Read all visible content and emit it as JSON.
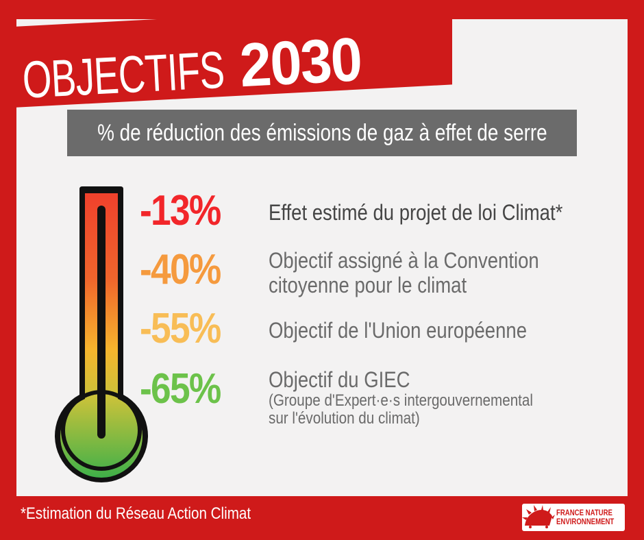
{
  "title": {
    "word": "OBJECTIFS",
    "year": "2030"
  },
  "subtitle": "% de réduction des émissions de gaz à effet de serre",
  "items": [
    {
      "percent": "-13%",
      "color": "#f2262a",
      "text": "Effet estimé du projet de loi Climat*"
    },
    {
      "percent": "-40%",
      "color": "#f59a3e",
      "text_line1": "Objectif assigné à la Convention",
      "text_line2": "citoyenne pour le climat"
    },
    {
      "percent": "-55%",
      "color": "#f8bd56",
      "text": "Objectif de l'Union européenne"
    },
    {
      "percent": "-65%",
      "color": "#6cc24a",
      "text": "Objectif du GIEC",
      "note_line1": "(Groupe d'Expert·e·s intergouvernemental",
      "note_line2": "sur l'évolution du climat)"
    }
  ],
  "footnote": "*Estimation du Réseau Action Climat",
  "logo": {
    "line1": "FRANCE NATURE",
    "line2": "ENVIRONNEMENT"
  },
  "colors": {
    "frame": "#cf1a1a",
    "panel": "#f3f2f2",
    "subtitle_band": "#6b6b6b",
    "thermo_top": "#f0412c",
    "thermo_mid": "#f6b52d",
    "thermo_bottom": "#3fb049"
  }
}
